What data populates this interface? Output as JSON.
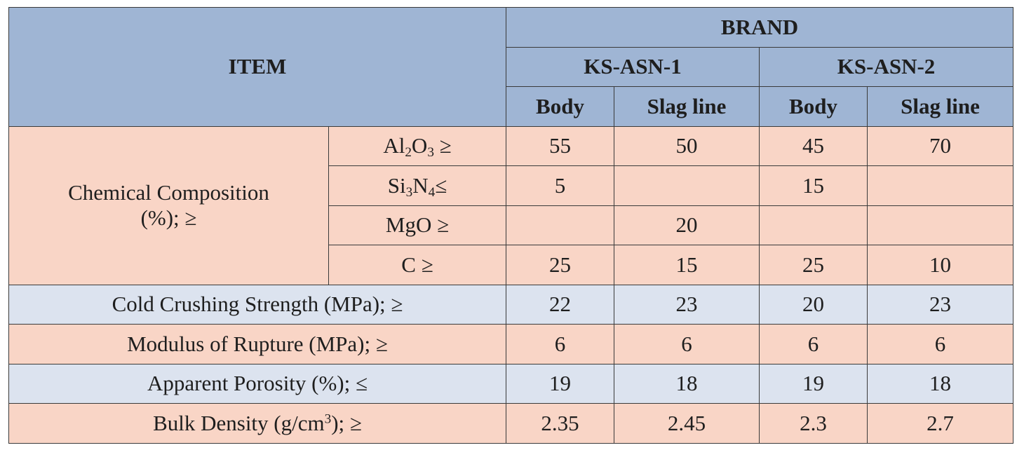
{
  "table": {
    "header": {
      "item": "ITEM",
      "brand": "BRAND",
      "brands": [
        "KS-ASN-1",
        "KS-ASN-2"
      ],
      "body": "Body",
      "slag_line": "Slag line"
    },
    "chem": {
      "label_line1": "Chemical Composition",
      "label_line2": "(%); ≥",
      "rows": [
        {
          "pre": "Al",
          "sub1": "2",
          "mid": "O",
          "sub2": "3",
          "post": " ≥",
          "values": [
            "55",
            "50",
            "45",
            "70"
          ]
        },
        {
          "pre": "Si",
          "sub1": "3",
          "mid": "N",
          "sub2": "4",
          "post": "≤",
          "values": [
            "5",
            "",
            "15",
            ""
          ]
        },
        {
          "pre": "MgO ≥",
          "sub1": "",
          "mid": "",
          "sub2": "",
          "post": "",
          "values": [
            "",
            "20",
            "",
            ""
          ]
        },
        {
          "pre": "C ≥",
          "sub1": "",
          "mid": "",
          "sub2": "",
          "post": "",
          "values": [
            "25",
            "15",
            "25",
            "10"
          ]
        }
      ]
    },
    "props": [
      {
        "label": "Cold Crushing Strength (MPa); ≥",
        "values": [
          "22",
          "23",
          "20",
          "23"
        ]
      },
      {
        "label": "Modulus of Rupture (MPa); ≥",
        "values": [
          "6",
          "6",
          "6",
          "6"
        ]
      },
      {
        "label": "Apparent Porosity (%); ≤",
        "values": [
          "19",
          "18",
          "19",
          "18"
        ]
      }
    ],
    "density": {
      "pre": "Bulk Density (g/cm",
      "sup": "3",
      "post": "); ≥",
      "values": [
        "2.35",
        "2.45",
        "2.3",
        "2.7"
      ]
    }
  }
}
